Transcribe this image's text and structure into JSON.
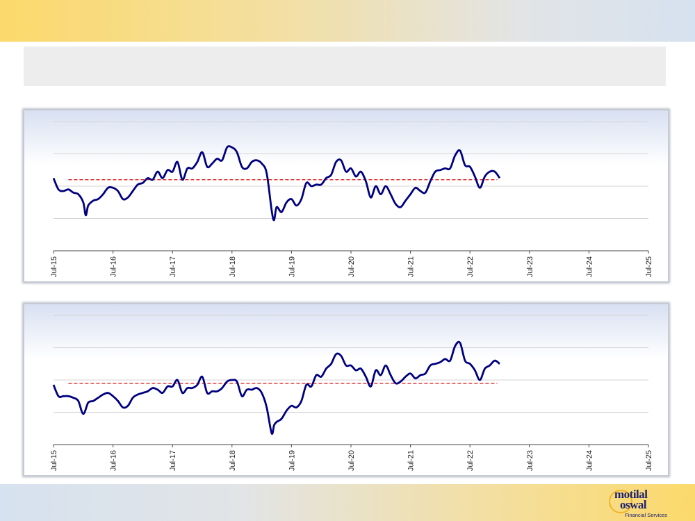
{
  "chart_data": [
    {
      "type": "line",
      "title": "",
      "xlabel": "",
      "ylabel": "",
      "x_ticks": [
        "Jul-15",
        "Jul-16",
        "Jul-17",
        "Jul-18",
        "Jul-19",
        "Jul-20",
        "Jul-21",
        "Jul-22",
        "Jul-23",
        "Jul-24",
        "Jul-25"
      ],
      "x_range": [
        0,
        120
      ],
      "ylim": [
        0,
        4
      ],
      "grid": true,
      "series": [
        {
          "color": "#000080",
          "values": [
            [
              0,
              2.25
            ],
            [
              1,
              1.9
            ],
            [
              2,
              1.85
            ],
            [
              3,
              1.9
            ],
            [
              4,
              1.8
            ],
            [
              5,
              1.75
            ],
            [
              6,
              1.5
            ],
            [
              6.5,
              1.1
            ],
            [
              7,
              1.4
            ],
            [
              8,
              1.55
            ],
            [
              9,
              1.6
            ],
            [
              10,
              1.75
            ],
            [
              11,
              1.95
            ],
            [
              12,
              1.95
            ],
            [
              13,
              1.85
            ],
            [
              14,
              1.6
            ],
            [
              15,
              1.65
            ],
            [
              16,
              1.85
            ],
            [
              17,
              2.05
            ],
            [
              18,
              2.1
            ],
            [
              19,
              2.25
            ],
            [
              20,
              2.2
            ],
            [
              21,
              2.45
            ],
            [
              22,
              2.25
            ],
            [
              23,
              2.5
            ],
            [
              24,
              2.45
            ],
            [
              25,
              2.75
            ],
            [
              26,
              2.2
            ],
            [
              27,
              2.55
            ],
            [
              28,
              2.55
            ],
            [
              29,
              2.75
            ],
            [
              30,
              3.05
            ],
            [
              31,
              2.6
            ],
            [
              32,
              2.7
            ],
            [
              33,
              2.85
            ],
            [
              34,
              2.8
            ],
            [
              35,
              3.2
            ],
            [
              36,
              3.2
            ],
            [
              37,
              3.05
            ],
            [
              38,
              2.6
            ],
            [
              39,
              2.55
            ],
            [
              40,
              2.75
            ],
            [
              41,
              2.8
            ],
            [
              42,
              2.7
            ],
            [
              43,
              2.4
            ],
            [
              44,
              1.25
            ],
            [
              44.5,
              0.95
            ],
            [
              45,
              1.35
            ],
            [
              46,
              1.2
            ],
            [
              47,
              1.5
            ],
            [
              48,
              1.6
            ],
            [
              49,
              1.4
            ],
            [
              50,
              1.6
            ],
            [
              51,
              2.1
            ],
            [
              52,
              2.0
            ],
            [
              53,
              2.05
            ],
            [
              54,
              2.05
            ],
            [
              55,
              2.25
            ],
            [
              56,
              2.35
            ],
            [
              57,
              2.75
            ],
            [
              58,
              2.8
            ],
            [
              59,
              2.45
            ],
            [
              60,
              2.55
            ],
            [
              61,
              2.3
            ],
            [
              62,
              2.45
            ],
            [
              63,
              2.15
            ],
            [
              64,
              1.65
            ],
            [
              65,
              2.0
            ],
            [
              66,
              1.75
            ],
            [
              67,
              2.0
            ],
            [
              68,
              1.75
            ],
            [
              69,
              1.45
            ],
            [
              70,
              1.35
            ],
            [
              71,
              1.55
            ],
            [
              72,
              1.75
            ],
            [
              73,
              1.95
            ],
            [
              74,
              1.85
            ],
            [
              75,
              1.8
            ],
            [
              76,
              2.15
            ],
            [
              77,
              2.45
            ],
            [
              78,
              2.5
            ],
            [
              79,
              2.55
            ],
            [
              80,
              2.55
            ],
            [
              81,
              2.95
            ],
            [
              82,
              3.1
            ],
            [
              83,
              2.65
            ],
            [
              84,
              2.6
            ],
            [
              85,
              2.3
            ],
            [
              86,
              1.95
            ],
            [
              87,
              2.3
            ],
            [
              88,
              2.45
            ],
            [
              89,
              2.45
            ],
            [
              90,
              2.25
            ]
          ]
        }
      ],
      "reference_line": {
        "value": 2.2,
        "color": "#e02020",
        "style": "dashed"
      }
    },
    {
      "type": "line",
      "title": "",
      "xlabel": "",
      "ylabel": "",
      "x_ticks": [
        "Jul-15",
        "Jul-16",
        "Jul-17",
        "Jul-18",
        "Jul-19",
        "Jul-20",
        "Jul-21",
        "Jul-22",
        "Jul-23",
        "Jul-24",
        "Jul-25"
      ],
      "x_range": [
        0,
        120
      ],
      "ylim": [
        0,
        4
      ],
      "grid": true,
      "series": [
        {
          "color": "#000080",
          "values": [
            [
              0,
              1.85
            ],
            [
              1,
              1.5
            ],
            [
              2,
              1.5
            ],
            [
              3,
              1.5
            ],
            [
              4,
              1.45
            ],
            [
              5,
              1.35
            ],
            [
              6,
              0.95
            ],
            [
              7,
              1.3
            ],
            [
              8,
              1.35
            ],
            [
              9,
              1.45
            ],
            [
              10,
              1.55
            ],
            [
              11,
              1.6
            ],
            [
              12,
              1.5
            ],
            [
              13,
              1.35
            ],
            [
              14,
              1.15
            ],
            [
              15,
              1.2
            ],
            [
              16,
              1.45
            ],
            [
              17,
              1.55
            ],
            [
              18,
              1.6
            ],
            [
              19,
              1.65
            ],
            [
              20,
              1.75
            ],
            [
              21,
              1.7
            ],
            [
              22,
              1.6
            ],
            [
              23,
              1.8
            ],
            [
              24,
              1.8
            ],
            [
              25,
              2.0
            ],
            [
              26,
              1.6
            ],
            [
              27,
              1.75
            ],
            [
              28,
              1.75
            ],
            [
              29,
              1.85
            ],
            [
              30,
              2.1
            ],
            [
              31,
              1.6
            ],
            [
              32,
              1.65
            ],
            [
              33,
              1.65
            ],
            [
              34,
              1.75
            ],
            [
              35,
              1.95
            ],
            [
              36,
              2.0
            ],
            [
              37,
              1.95
            ],
            [
              38,
              1.5
            ],
            [
              39,
              1.7
            ],
            [
              40,
              1.7
            ],
            [
              41,
              1.75
            ],
            [
              42,
              1.6
            ],
            [
              43,
              1.15
            ],
            [
              44,
              0.35
            ],
            [
              44.5,
              0.6
            ],
            [
              45,
              0.7
            ],
            [
              46,
              0.8
            ],
            [
              47,
              1.05
            ],
            [
              48,
              1.2
            ],
            [
              49,
              1.15
            ],
            [
              50,
              1.35
            ],
            [
              51,
              1.85
            ],
            [
              52,
              1.8
            ],
            [
              53,
              2.15
            ],
            [
              54,
              2.1
            ],
            [
              55,
              2.35
            ],
            [
              56,
              2.5
            ],
            [
              57,
              2.8
            ],
            [
              58,
              2.75
            ],
            [
              59,
              2.45
            ],
            [
              60,
              2.45
            ],
            [
              61,
              2.3
            ],
            [
              62,
              2.35
            ],
            [
              63,
              2.1
            ],
            [
              64,
              1.8
            ],
            [
              65,
              2.3
            ],
            [
              66,
              2.15
            ],
            [
              67,
              2.45
            ],
            [
              68,
              2.15
            ],
            [
              69,
              1.9
            ],
            [
              70,
              1.95
            ],
            [
              71,
              2.1
            ],
            [
              72,
              2.2
            ],
            [
              73,
              2.05
            ],
            [
              74,
              2.15
            ],
            [
              75,
              2.2
            ],
            [
              76,
              2.45
            ],
            [
              77,
              2.5
            ],
            [
              78,
              2.55
            ],
            [
              79,
              2.65
            ],
            [
              80,
              2.6
            ],
            [
              81,
              3.05
            ],
            [
              82,
              3.15
            ],
            [
              83,
              2.6
            ],
            [
              84,
              2.5
            ],
            [
              85,
              2.3
            ],
            [
              86,
              2.0
            ],
            [
              87,
              2.35
            ],
            [
              88,
              2.45
            ],
            [
              89,
              2.6
            ],
            [
              90,
              2.5
            ]
          ]
        }
      ],
      "reference_line": {
        "value": 1.9,
        "color": "#e02020",
        "style": "dashed"
      }
    }
  ],
  "branding": {
    "logo_line1": "motilal",
    "logo_line2": "oswal",
    "logo_sub": "Financial Services",
    "colors": {
      "navy": "#1d2270",
      "gold": "#f0b429"
    }
  }
}
